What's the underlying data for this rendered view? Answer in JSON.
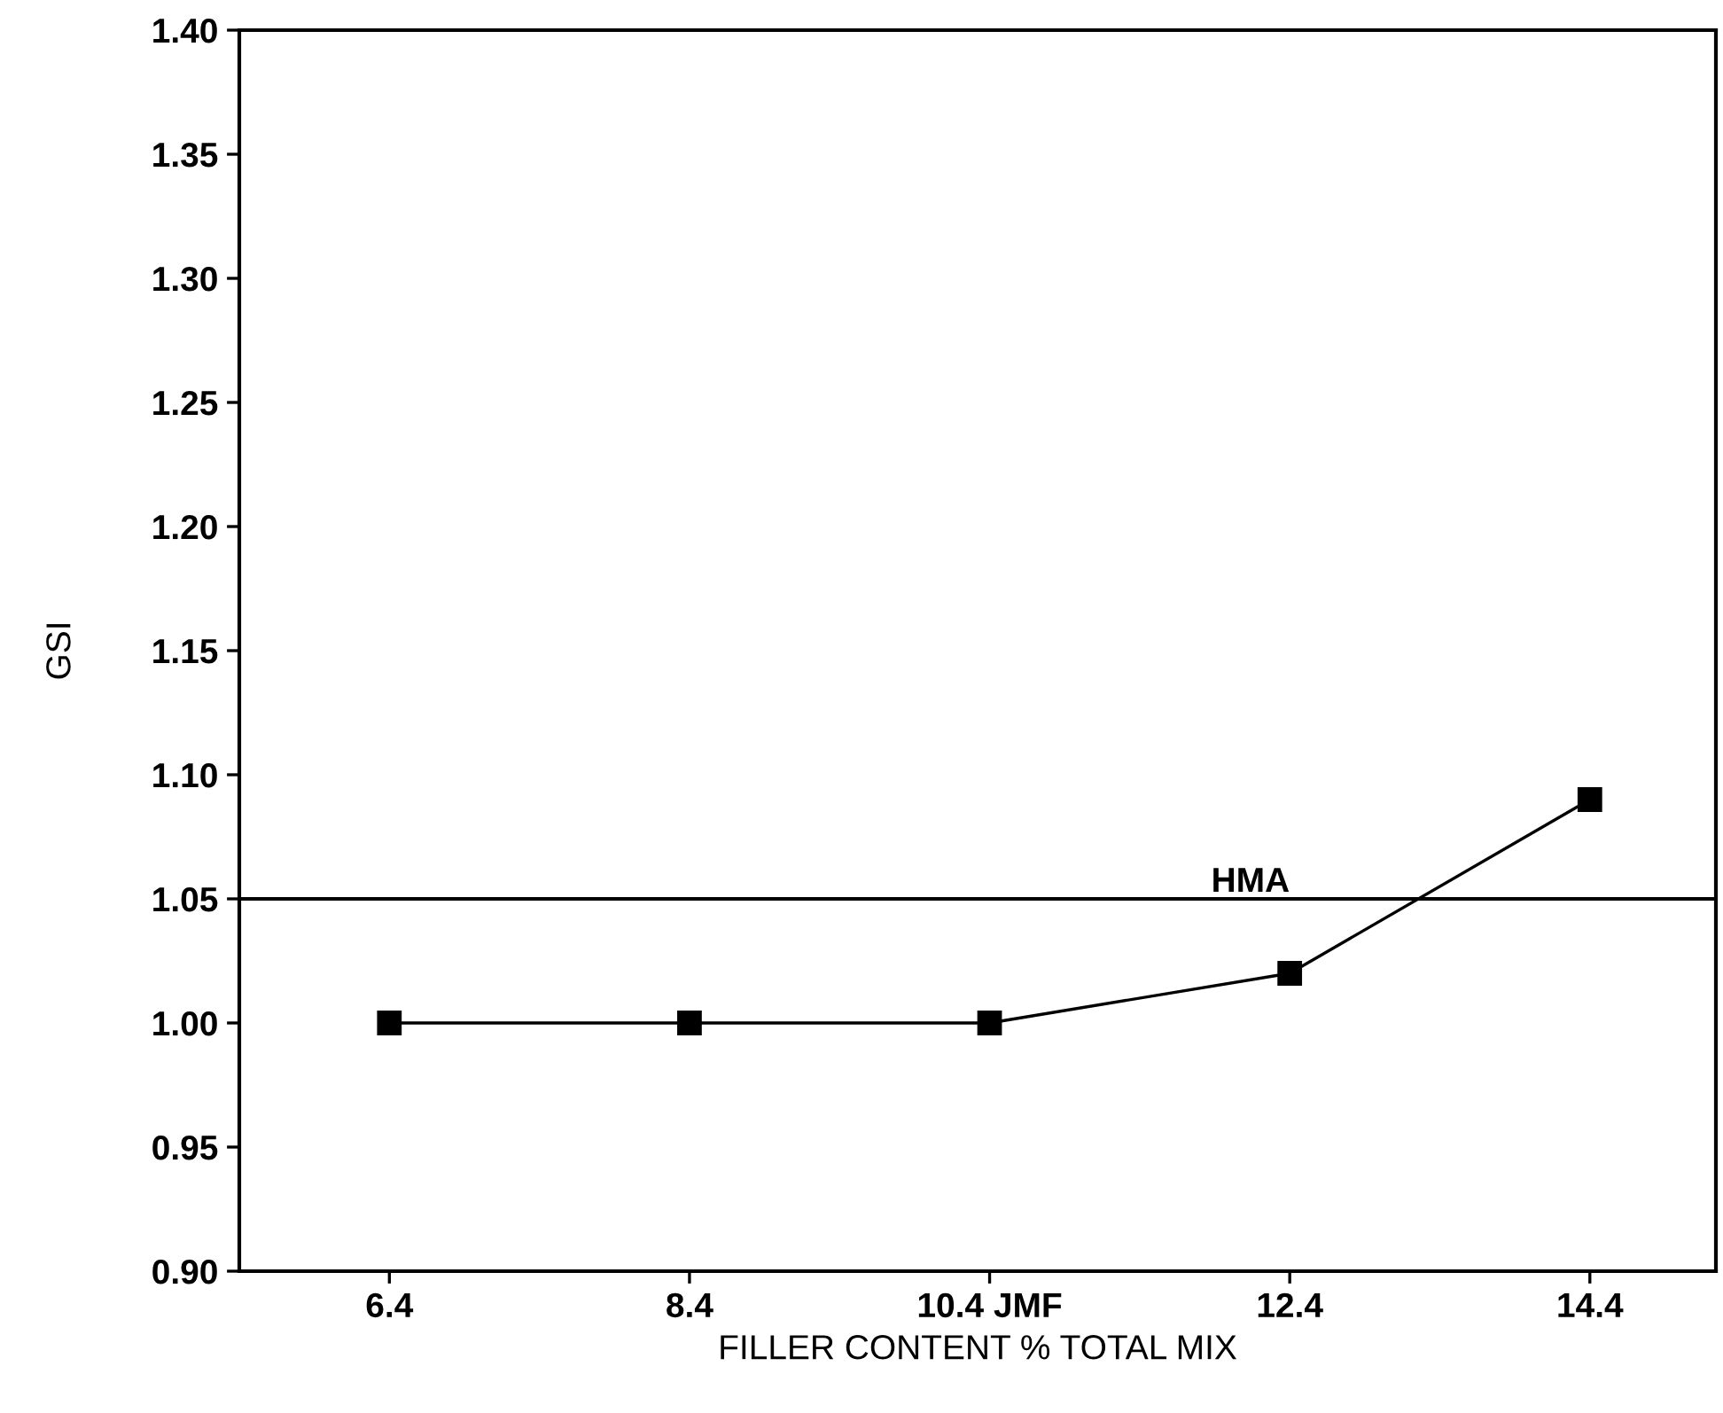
{
  "chart_data": {
    "type": "line",
    "xlabel": "FILLER CONTENT % TOTAL MIX",
    "ylabel": "GSI",
    "categories": [
      "6.4",
      "8.4",
      "10.4 JMF",
      "12.4",
      "14.4"
    ],
    "series": [
      {
        "color": "#000000",
        "values": [
          1.0,
          1.0,
          1.0,
          1.02,
          1.09
        ]
      }
    ],
    "ylim": [
      0.9,
      1.4
    ],
    "yticks": [
      {
        "value": 0.9,
        "label": "0.90"
      },
      {
        "value": 0.95,
        "label": "0.95"
      },
      {
        "value": 1.0,
        "label": "1.00"
      },
      {
        "value": 1.05,
        "label": "1.05"
      },
      {
        "value": 1.1,
        "label": "1.10"
      },
      {
        "value": 1.15,
        "label": "1.15"
      },
      {
        "value": 1.2,
        "label": "1.20"
      },
      {
        "value": 1.25,
        "label": "1.25"
      },
      {
        "value": 1.3,
        "label": "1.30"
      },
      {
        "value": 1.35,
        "label": "1.35"
      },
      {
        "value": 1.4,
        "label": "1.40"
      }
    ],
    "ref_lines": [
      {
        "axis": "y",
        "value": 1.05,
        "label": "HMA",
        "color": "#000000"
      }
    ],
    "marker": "square",
    "line_style": "solid",
    "grid": false,
    "legend": false
  }
}
